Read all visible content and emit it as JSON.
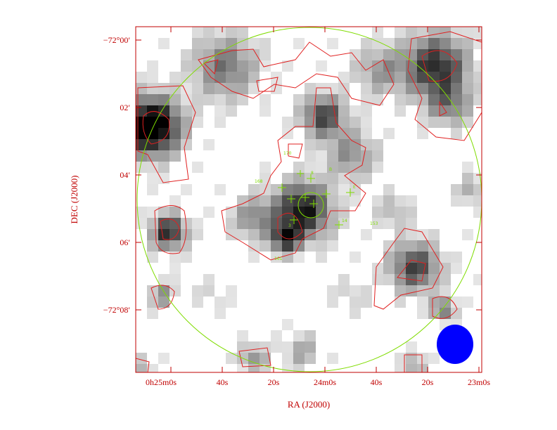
{
  "figure": {
    "x_axis_label": "RA (J2000)",
    "y_axis_label": "DEC (J2000)",
    "x_tick_labels": [
      "0h25m0s",
      "40s",
      "20s",
      "24m0s",
      "40s",
      "20s",
      "23m0s"
    ],
    "y_tick_labels": [
      "−72°00′",
      "02′",
      "04′",
      "06′",
      "−72°08′"
    ],
    "source_labels": [
      "170",
      "168",
      "161",
      "153",
      "14",
      "B",
      "E",
      "8",
      "3"
    ]
  }
}
